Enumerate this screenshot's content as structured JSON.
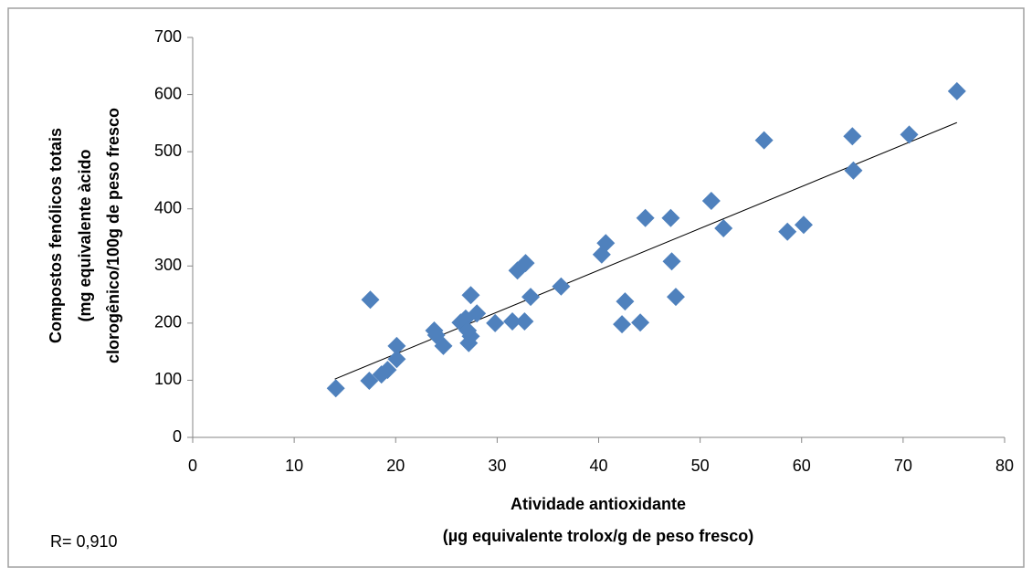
{
  "chart_data": {
    "type": "scatter",
    "y_label_lines": [
      "Compostos fenólicos totais",
      "(mg equivalente àcido",
      "clorogênico/100g de peso fresco"
    ],
    "x_label_lines": [
      "Atividade antioxidante",
      "(µg  equivalente trolox/g de peso fresco)"
    ],
    "annotation": "R= 0,910",
    "color": "#4F81BD",
    "x": [
      14.1,
      17.5,
      17.4,
      18.6,
      19.2,
      20.1,
      20.1,
      23.8,
      24.0,
      24.7,
      26.4,
      26.9,
      27.2,
      27.4,
      27.4,
      28.0,
      27.1,
      29.8,
      31.5,
      32.0,
      32.7,
      32.8,
      33.3,
      36.3,
      40.3,
      40.7,
      42.3,
      42.6,
      44.1,
      44.6,
      47.1,
      47.2,
      47.6,
      51.1,
      52.3,
      56.3,
      58.6,
      60.2,
      65.0,
      65.1,
      70.6,
      75.3
    ],
    "values": [
      86,
      241,
      99,
      110,
      118,
      160,
      137,
      187,
      179,
      160,
      201,
      208,
      165,
      177,
      249,
      217,
      187,
      200,
      203,
      292,
      203,
      305,
      246,
      264,
      320,
      340,
      198,
      238,
      201,
      384,
      384,
      308,
      246,
      414,
      366,
      520,
      360,
      372,
      527,
      467,
      530,
      606
    ],
    "trendline": {
      "x": [
        14,
        75.3
      ],
      "values": [
        102,
        551
      ],
      "color": "#000000"
    },
    "xlim": [
      0,
      80
    ],
    "xticks": [
      0,
      10,
      20,
      30,
      40,
      50,
      60,
      70,
      80
    ],
    "ylim": [
      0,
      700
    ],
    "yticks": [
      0,
      100,
      200,
      300,
      400,
      500,
      600,
      700
    ]
  }
}
